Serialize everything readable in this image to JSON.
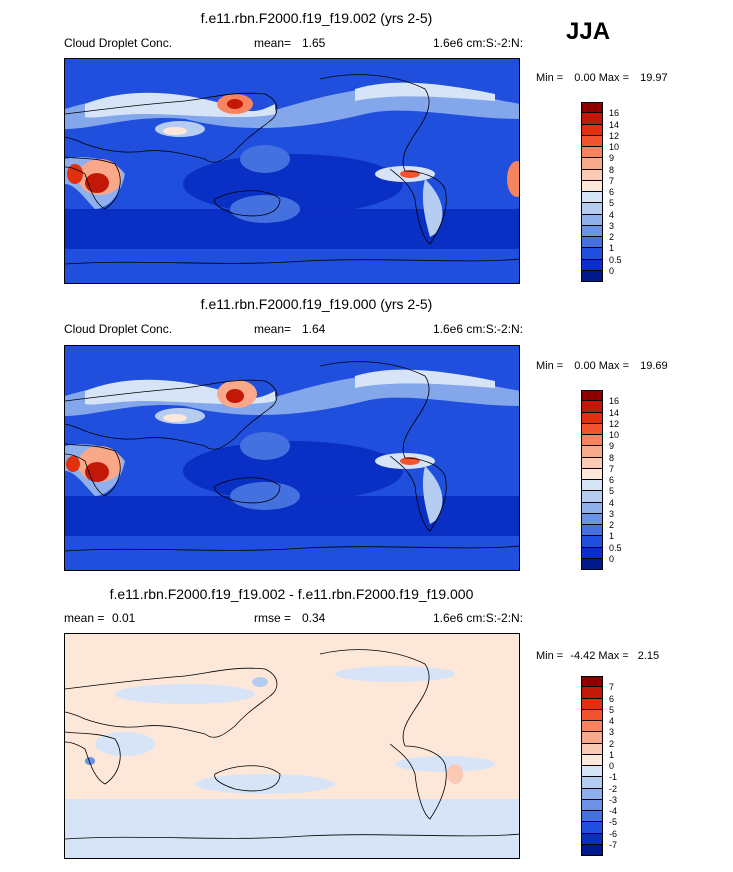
{
  "season": "JJA",
  "panels": [
    {
      "title": "f.e11.rbn.F2000.f19_f19.002 (yrs 2-5)",
      "left_label": "Cloud Droplet Conc.",
      "stat_label": "mean=",
      "stat_value": "1.65",
      "units": "1.6e6 cm:S:-2:N:",
      "min_label": "Min =",
      "min_value": "0.00",
      "max_label": "Max =",
      "max_value": "19.97",
      "colorbar": {
        "labels": [
          "16",
          "14",
          "12",
          "10",
          "9",
          "8",
          "7",
          "6",
          "5",
          "4",
          "3",
          "2",
          "1",
          "0.5",
          "0"
        ],
        "colors": [
          "#8b0000",
          "#c21807",
          "#e0300e",
          "#f2542d",
          "#f7835f",
          "#f9a98a",
          "#fbc9b4",
          "#fde7d9",
          "#d7e4f7",
          "#b6cdf2",
          "#8fb0ec",
          "#6a92e6",
          "#4470e0",
          "#1f4fdc",
          "#0a2fc4",
          "#001a8c"
        ]
      }
    },
    {
      "title": "f.e11.rbn.F2000.f19_f19.000 (yrs 2-5)",
      "left_label": "Cloud Droplet Conc.",
      "stat_label": "mean=",
      "stat_value": "1.64",
      "units": "1.6e6 cm:S:-2:N:",
      "min_label": "Min =",
      "min_value": "0.00",
      "max_label": "Max =",
      "max_value": "19.69",
      "colorbar": {
        "labels": [
          "16",
          "14",
          "12",
          "10",
          "9",
          "8",
          "7",
          "6",
          "5",
          "4",
          "3",
          "2",
          "1",
          "0.5",
          "0"
        ],
        "colors": [
          "#8b0000",
          "#c21807",
          "#e0300e",
          "#f2542d",
          "#f7835f",
          "#f9a98a",
          "#fbc9b4",
          "#fde7d9",
          "#d7e4f7",
          "#b6cdf2",
          "#8fb0ec",
          "#6a92e6",
          "#4470e0",
          "#1f4fdc",
          "#0a2fc4",
          "#001a8c"
        ]
      }
    },
    {
      "title": "f.e11.rbn.F2000.f19_f19.002 - f.e11.rbn.F2000.f19_f19.000",
      "left_label": "mean =",
      "left_value": "0.01",
      "stat_label": "rmse =",
      "stat_value": "0.34",
      "units": "1.6e6 cm:S:-2:N:",
      "min_label": "Min =",
      "min_value": "-4.42",
      "max_label": "Max =",
      "max_value": "2.15",
      "colorbar": {
        "labels": [
          "7",
          "6",
          "5",
          "4",
          "3",
          "2",
          "1",
          "0",
          "-1",
          "-2",
          "-3",
          "-4",
          "-5",
          "-6",
          "-7"
        ],
        "colors": [
          "#8b0000",
          "#c21807",
          "#e0300e",
          "#f2542d",
          "#f7835f",
          "#f9a98a",
          "#fbc9b4",
          "#fde7d9",
          "#d7e4f7",
          "#b6cdf2",
          "#8fb0ec",
          "#6a92e6",
          "#4470e0",
          "#1f4fdc",
          "#0a2fc4",
          "#001a8c"
        ]
      }
    }
  ]
}
